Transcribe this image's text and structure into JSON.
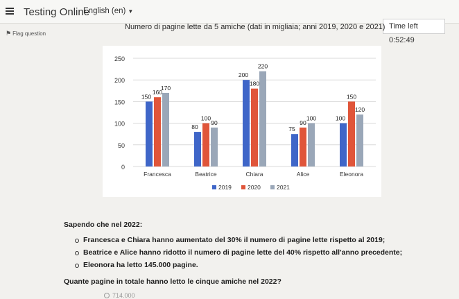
{
  "header": {
    "app_title": "Testing Online",
    "language": "English (en)"
  },
  "flag_question": "Flag question",
  "timer": "Time left 0:52:49",
  "chart_data": {
    "type": "bar",
    "title": "Numero di pagine lette da 5 amiche (dati in migliaia; anni 2019, 2020 e 2021)",
    "categories": [
      "Francesca",
      "Beatrice",
      "Chiara",
      "Alice",
      "Eleonora"
    ],
    "series": [
      {
        "name": "2019",
        "values": [
          150,
          80,
          200,
          75,
          100
        ],
        "color": "#3f66c8"
      },
      {
        "name": "2020",
        "values": [
          160,
          100,
          180,
          90,
          150
        ],
        "color": "#e0553a"
      },
      {
        "name": "2021",
        "values": [
          170,
          90,
          220,
          100,
          120
        ],
        "color": "#9aa7b8"
      }
    ],
    "ylim": [
      0,
      250
    ],
    "yticks": [
      0,
      50,
      100,
      150,
      200,
      250
    ],
    "grid": true,
    "legend": "bottom"
  },
  "statement": {
    "intro": "Sapendo che nel 2022:",
    "bullets": [
      "Francesca e Chiara hanno aumentato del 30% il numero di pagine lette rispetto al 2019;",
      "Beatrice e Alice hanno ridotto il numero di pagine lette del 40% rispetto all'anno precedente;",
      "Eleonora ha letto 145.000 pagine."
    ],
    "question": "Quante pagine in totale hanno letto le cinque amiche nel 2022?"
  },
  "answer_option_1": "714.000"
}
